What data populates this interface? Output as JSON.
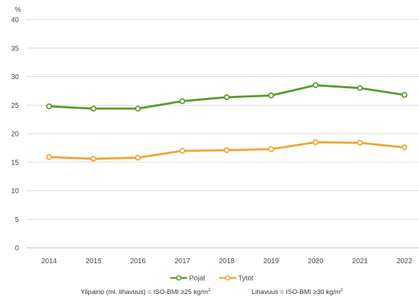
{
  "chart_data": {
    "type": "line",
    "unit_label": "%",
    "x": [
      "2014",
      "2015",
      "2016",
      "2017",
      "2018",
      "2019",
      "2020",
      "2021",
      "2022"
    ],
    "ylim": [
      0,
      40
    ],
    "yticks": [
      0,
      5,
      10,
      15,
      20,
      25,
      30,
      35,
      40
    ],
    "grid": true,
    "legend_position": "bottom",
    "series": [
      {
        "name": "Pojat",
        "color": "#5a9a2c",
        "values": [
          24.8,
          24.4,
          24.4,
          25.7,
          26.4,
          26.7,
          28.5,
          28.0,
          26.8
        ]
      },
      {
        "name": "Tytöt",
        "color": "#f2a431",
        "values": [
          15.9,
          15.6,
          15.8,
          17.0,
          17.1,
          17.3,
          18.5,
          18.4,
          17.6
        ]
      }
    ]
  },
  "notes": {
    "overweight_prefix": "Ylipaino (ml. lihavuus) = ISO-BMI ≥25 kg/m",
    "overweight_sup": "2",
    "obesity_prefix": "Lihavuus = ISO-BMI ≥30 kg/m",
    "obesity_sup": "2"
  }
}
